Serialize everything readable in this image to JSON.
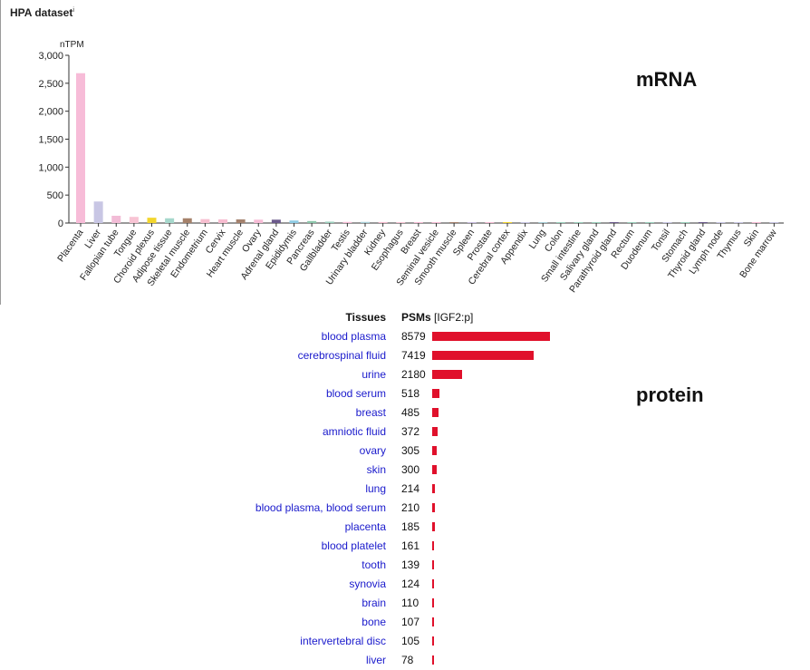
{
  "dataset": {
    "title": "HPA dataset",
    "info_marker": "i"
  },
  "annotations": {
    "mrna": "mRNA",
    "protein": "protein"
  },
  "chart_data": [
    {
      "type": "bar",
      "ylabel": "nTPM",
      "ylim": [
        0,
        3000
      ],
      "yticks": [
        "0",
        "500",
        "1,000",
        "1,500",
        "2,000",
        "2,500",
        "3,000"
      ],
      "grid": false,
      "categories": [
        "Placenta",
        "Liver",
        "Fallopian tube",
        "Tongue",
        "Choroid plexus",
        "Adipose tissue",
        "Skeletal muscle",
        "Endometrium",
        "Cervix",
        "Heart muscle",
        "Ovary",
        "Adrenal gland",
        "Epididymis",
        "Pancreas",
        "Gallbladder",
        "Testis",
        "Urinary bladder",
        "Kidney",
        "Esophagus",
        "Breast",
        "Seminal vesicle",
        "Smooth muscle",
        "Spleen",
        "Prostate",
        "Cerebral cortex",
        "Appendix",
        "Lung",
        "Colon",
        "Small intestine",
        "Salivary gland",
        "Parathyroid gland",
        "Rectum",
        "Duodenum",
        "Tonsil",
        "Stomach",
        "Thyroid gland",
        "Lymph node",
        "Thymus",
        "Skin",
        "Bone marrow"
      ],
      "values": [
        2680,
        385,
        130,
        110,
        95,
        85,
        85,
        70,
        65,
        65,
        60,
        60,
        45,
        35,
        25,
        20,
        20,
        18,
        16,
        15,
        14,
        13,
        12,
        11,
        10,
        9,
        9,
        8,
        8,
        7,
        7,
        6,
        6,
        5,
        5,
        5,
        4,
        4,
        3,
        3
      ],
      "colors": [
        "#f7bcd8",
        "#c8c6e4",
        "#f2bcd6",
        "#f8c4d4",
        "#f2d52c",
        "#a6d8cc",
        "#a5816a",
        "#f7bfd0",
        "#f7bcd0",
        "#a5826e",
        "#f7bcd6",
        "#6c5a8c",
        "#8ecbe4",
        "#8cc6aa",
        "#9ad0bc",
        "#f7bcd6",
        "#a8cfd8",
        "#f7bcd0",
        "#f8c4d4",
        "#f7bcd6",
        "#f7bcd6",
        "#a5826e",
        "#c8bce0",
        "#f7bcd6",
        "#f2d52c",
        "#c8c6e4",
        "#a8cfd8",
        "#9ad0bc",
        "#9ad0bc",
        "#9ad0bc",
        "#6c5a8c",
        "#9ad0bc",
        "#9ad0bc",
        "#c8c6e4",
        "#9ad0bc",
        "#6c5a8c",
        "#c8c6e4",
        "#c8c6e4",
        "#f7bcd6",
        "#c8c6e4"
      ]
    },
    {
      "type": "bar",
      "orientation": "horizontal",
      "headers": {
        "tissues": "Tissues",
        "psms_bold": "PSMs",
        "psms_suffix": " [IGF2:p]"
      },
      "categories": [
        "blood plasma",
        "cerebrospinal fluid",
        "urine",
        "blood serum",
        "breast",
        "amniotic fluid",
        "ovary",
        "skin",
        "lung",
        "blood plasma, blood serum",
        "placenta",
        "blood platelet",
        "tooth",
        "synovia",
        "brain",
        "bone",
        "intervertebral disc",
        "liver"
      ],
      "values": [
        8579,
        7419,
        2180,
        518,
        485,
        372,
        305,
        300,
        214,
        210,
        185,
        161,
        139,
        124,
        110,
        107,
        105,
        78
      ],
      "bar_color": "#e0102b"
    }
  ]
}
